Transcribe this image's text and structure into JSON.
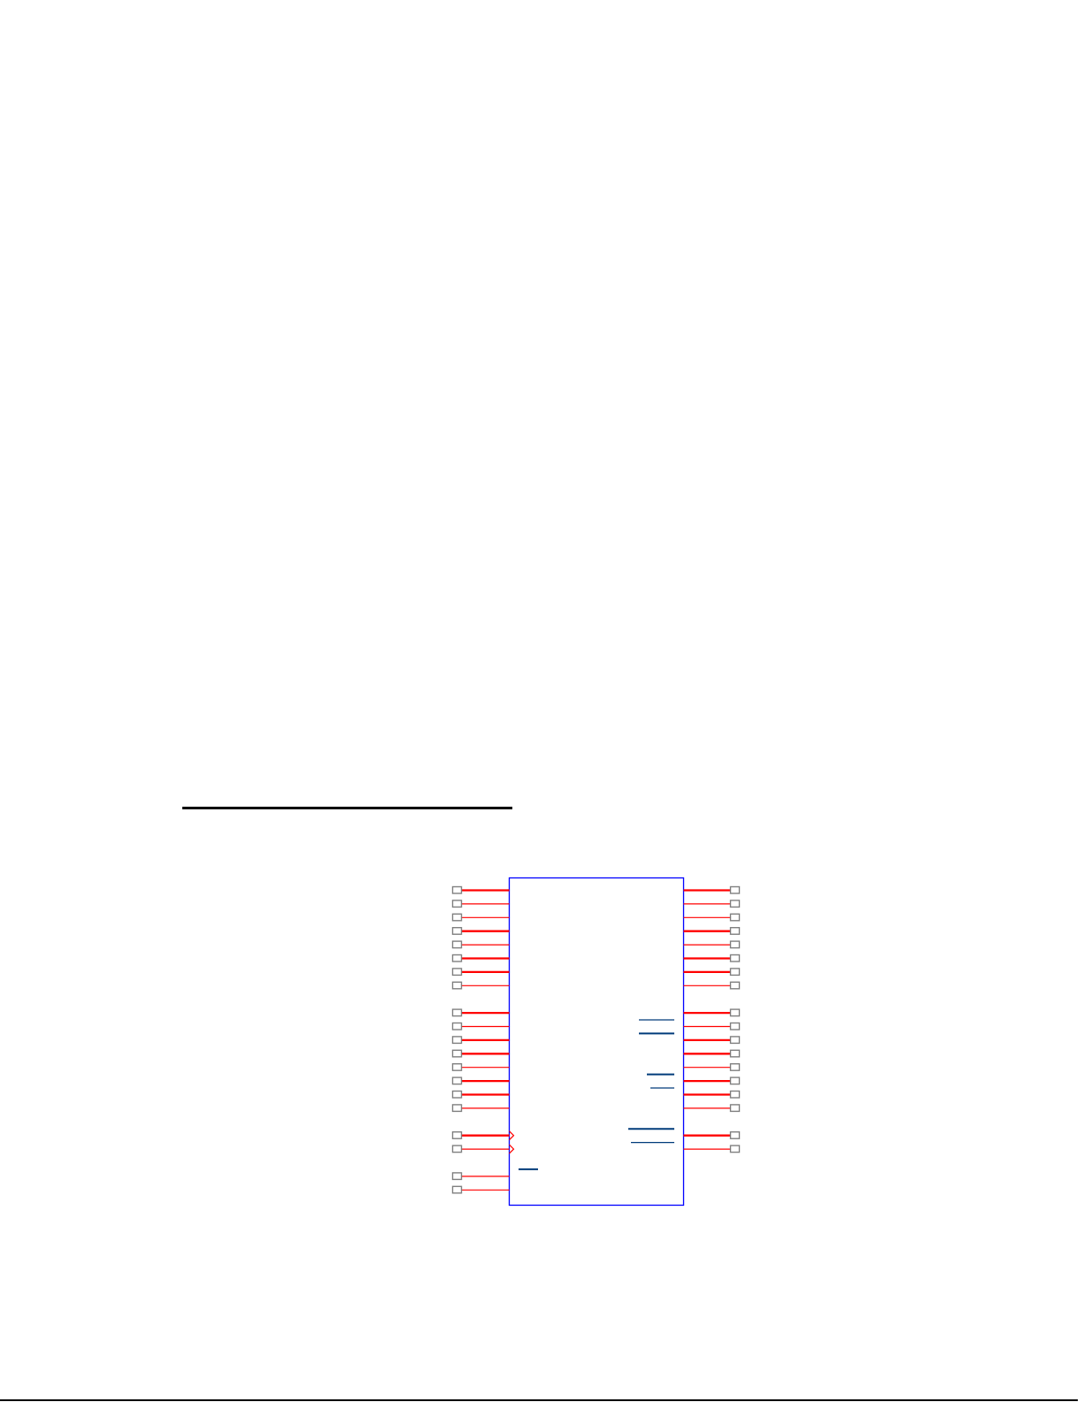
{
  "colors": {
    "body_outline": "#0000ff",
    "pin_line": "#ff0000",
    "pin_terminal": "#808080",
    "overbar": "#003b7a",
    "rule": "#000000"
  },
  "symbol": {
    "left_pins": [
      {
        "bus": true
      },
      {
        "bus": false
      },
      {
        "bus": false
      },
      {
        "bus": true
      },
      {
        "bus": false
      },
      {
        "bus": true
      },
      {
        "bus": true
      },
      {
        "bus": false
      },
      null,
      {
        "bus": true
      },
      {
        "bus": false
      },
      {
        "bus": true
      },
      {
        "bus": true
      },
      {
        "bus": false
      },
      {
        "bus": true
      },
      {
        "bus": true
      },
      {
        "bus": false
      },
      null,
      {
        "bus": true,
        "clock": true
      },
      {
        "bus": false,
        "clock": true
      },
      null,
      {
        "bus": false
      },
      {
        "bus": false
      }
    ],
    "right_pins": [
      {
        "bus": true
      },
      {
        "bus": false
      },
      {
        "bus": false
      },
      {
        "bus": true
      },
      {
        "bus": false
      },
      {
        "bus": true
      },
      {
        "bus": true
      },
      {
        "bus": false
      },
      null,
      {
        "bus": true
      },
      {
        "bus": false,
        "overbar": "thin"
      },
      {
        "bus": true,
        "overbar": "thick"
      },
      {
        "bus": true
      },
      {
        "bus": false
      },
      {
        "bus": true,
        "overbar": "thick"
      },
      {
        "bus": true,
        "overbar": "thin"
      },
      {
        "bus": false
      },
      null,
      {
        "bus": true,
        "overbar": "thick"
      },
      {
        "bus": false,
        "overbar": "thin"
      }
    ],
    "left_overbars": [
      {
        "row": 21,
        "weight": "thick"
      }
    ]
  }
}
